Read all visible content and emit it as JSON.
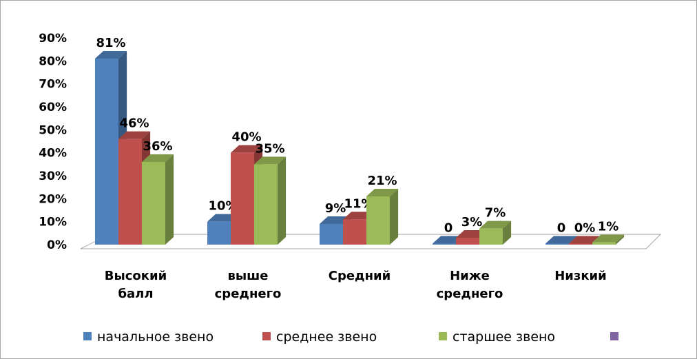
{
  "chart_data": {
    "type": "bar",
    "categories": [
      [
        "Высокий",
        "балл"
      ],
      [
        "выше",
        "среднего"
      ],
      [
        "Средний"
      ],
      [
        "Ниже",
        "среднего"
      ],
      [
        "Низкий"
      ]
    ],
    "series": [
      {
        "name": "начальное звено",
        "color": "#4f81bd",
        "values": [
          81,
          10,
          9,
          0,
          0
        ],
        "labels": [
          "81%",
          "10%",
          "9%",
          "0",
          "0"
        ]
      },
      {
        "name": "среднее звено",
        "color": "#c0504d",
        "values": [
          46,
          40,
          11,
          3,
          0
        ],
        "labels": [
          "46%",
          "40%",
          "11%",
          "3%",
          "0%"
        ]
      },
      {
        "name": "старшее звено",
        "color": "#9bbb59",
        "values": [
          36,
          35,
          21,
          7,
          1
        ],
        "labels": [
          "36%",
          "35%",
          "21%",
          "7%",
          "1%"
        ]
      }
    ],
    "extra_legend_color": "#8064a2",
    "yticks": [
      "0%",
      "10%",
      "20%",
      "30%",
      "40%",
      "50%",
      "60%",
      "70%",
      "80%",
      "90%"
    ],
    "ylim": [
      0,
      90
    ],
    "grid": false,
    "legend": "bottom",
    "style": "3d-clustered-column"
  }
}
